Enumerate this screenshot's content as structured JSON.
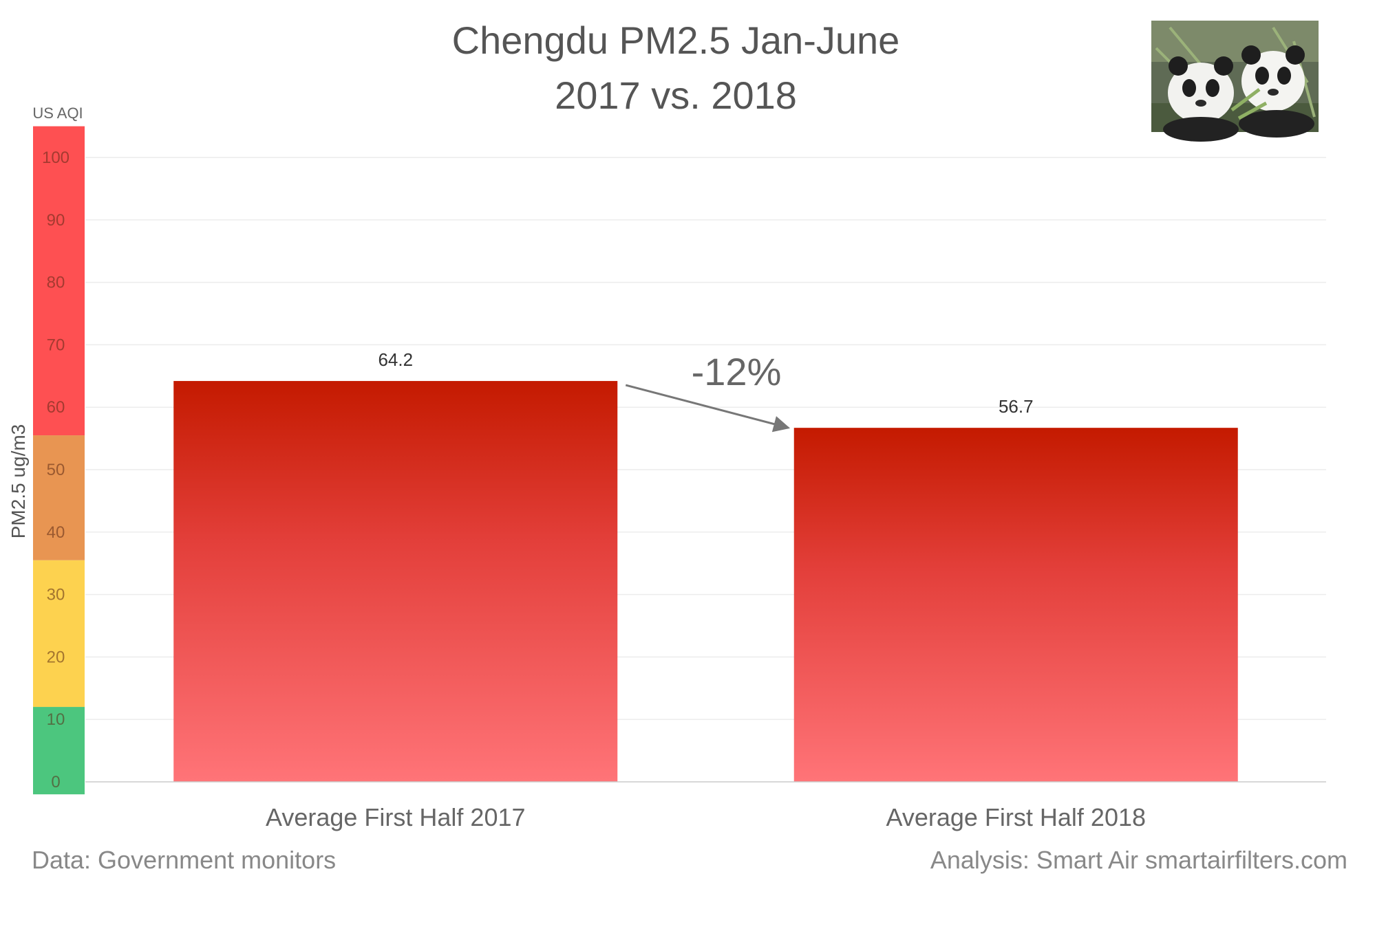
{
  "chart_data": {
    "type": "bar",
    "title": "Chengdu PM2.5 Jan-June",
    "subtitle": "2017 vs. 2018",
    "categories": [
      "Average First Half 2017",
      "Average First Half 2018"
    ],
    "values": [
      64.2,
      56.7
    ],
    "data_labels": [
      "64.2",
      "56.7"
    ],
    "ylabel": "PM2.5 ug/m3",
    "ylim": [
      0,
      100
    ],
    "yticks": [
      0,
      10,
      20,
      30,
      40,
      50,
      60,
      70,
      80,
      90,
      100
    ],
    "ytick_labels": [
      "0",
      "10",
      "20",
      "30",
      "40",
      "50",
      "60",
      "70",
      "80",
      "90",
      "100"
    ],
    "grid": true,
    "legend": "none",
    "bar_color_top": "#c41a00",
    "bar_color_bottom": "#ff7478",
    "aqi_scale": {
      "label": "US AQI",
      "bands": [
        {
          "from": -2,
          "to": 12,
          "color": "#4cc67e"
        },
        {
          "from": 12,
          "to": 35.5,
          "color": "#fdd24f"
        },
        {
          "from": 35.5,
          "to": 55.5,
          "color": "#e89552"
        },
        {
          "from": 55.5,
          "to": 105,
          "color": "#fe5052"
        }
      ]
    },
    "annotation": {
      "text": "-12%",
      "from_category": 0,
      "to_category": 1
    },
    "footnotes": {
      "left": "Data: Government monitors",
      "right": "Analysis: Smart Air smartairfilters.com"
    },
    "image": {
      "name": "panda-photo"
    }
  }
}
